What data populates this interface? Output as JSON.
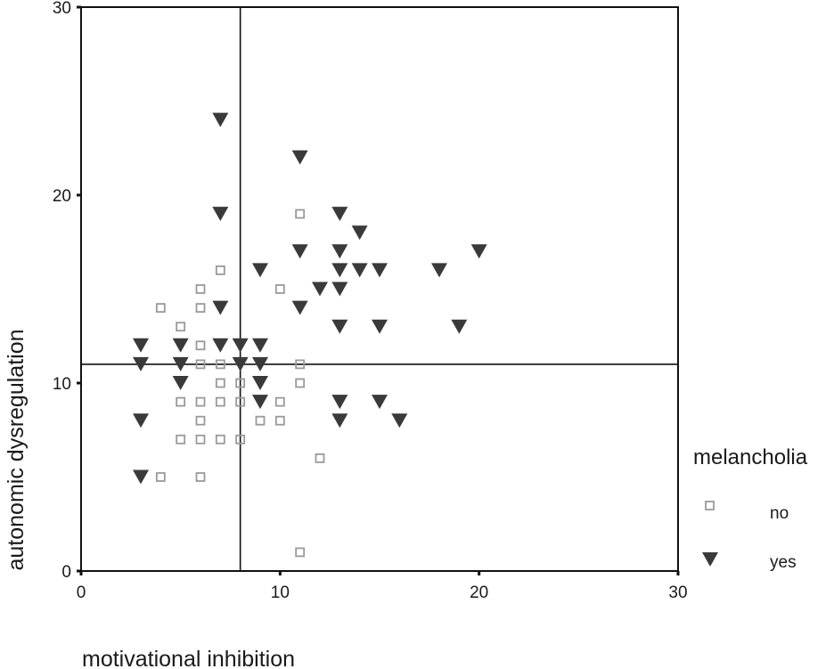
{
  "chart_data": {
    "type": "scatter",
    "xlabel": "motivational inhibition",
    "ylabel": "autonomic dysregulation",
    "xlim": [
      0,
      30
    ],
    "ylim": [
      0,
      30
    ],
    "x_ticks": [
      "0",
      "10",
      "20",
      "30"
    ],
    "y_ticks": [
      "0",
      "10",
      "20",
      "30"
    ],
    "grid": false,
    "reference_lines": {
      "x": 8,
      "y": 11
    },
    "legend": {
      "title": "melancholia",
      "placement": "right",
      "entries": [
        {
          "label": "no",
          "marker": "hollow-square",
          "color": "#9a9a9a"
        },
        {
          "label": "yes",
          "marker": "filled-triangle-down",
          "color": "#3a3a3a"
        }
      ]
    },
    "series": [
      {
        "name": "no",
        "color": "#9a9a9a",
        "marker": "hollow-square",
        "points": [
          [
            4,
            14
          ],
          [
            5,
            13
          ],
          [
            6,
            15
          ],
          [
            6,
            14
          ],
          [
            6,
            12
          ],
          [
            6,
            11
          ],
          [
            7,
            16
          ],
          [
            7,
            11
          ],
          [
            7,
            10
          ],
          [
            7,
            9
          ],
          [
            7,
            7
          ],
          [
            5,
            9
          ],
          [
            6,
            9
          ],
          [
            6,
            8
          ],
          [
            6,
            7
          ],
          [
            5,
            7
          ],
          [
            4,
            5
          ],
          [
            6,
            5
          ],
          [
            8,
            9
          ],
          [
            8,
            10
          ],
          [
            8,
            7
          ],
          [
            9,
            8
          ],
          [
            10,
            15
          ],
          [
            10,
            9
          ],
          [
            10,
            8
          ],
          [
            11,
            19
          ],
          [
            11,
            11
          ],
          [
            11,
            10
          ],
          [
            12,
            6
          ],
          [
            11,
            1
          ]
        ]
      },
      {
        "name": "yes",
        "color": "#3a3a3a",
        "marker": "filled-triangle-down",
        "points": [
          [
            3,
            12
          ],
          [
            3,
            11
          ],
          [
            3,
            8
          ],
          [
            3,
            5
          ],
          [
            5,
            12
          ],
          [
            5,
            11
          ],
          [
            5,
            10
          ],
          [
            7,
            24
          ],
          [
            7,
            19
          ],
          [
            7,
            14
          ],
          [
            7,
            12
          ],
          [
            8,
            12
          ],
          [
            8,
            11
          ],
          [
            9,
            16
          ],
          [
            9,
            12
          ],
          [
            9,
            11
          ],
          [
            9,
            10
          ],
          [
            9,
            9
          ],
          [
            11,
            22
          ],
          [
            11,
            17
          ],
          [
            11,
            14
          ],
          [
            12,
            15
          ],
          [
            13,
            19
          ],
          [
            13,
            17
          ],
          [
            13,
            16
          ],
          [
            13,
            15
          ],
          [
            13,
            13
          ],
          [
            13,
            9
          ],
          [
            13,
            8
          ],
          [
            14,
            18
          ],
          [
            14,
            16
          ],
          [
            15,
            16
          ],
          [
            15,
            13
          ],
          [
            15,
            9
          ],
          [
            16,
            8
          ],
          [
            18,
            16
          ],
          [
            19,
            13
          ],
          [
            20,
            17
          ]
        ]
      }
    ]
  }
}
